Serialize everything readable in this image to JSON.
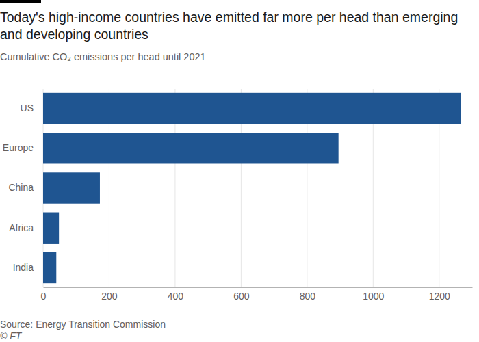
{
  "chart_data": {
    "type": "bar",
    "orientation": "horizontal",
    "title": "Today's high-income countries have emitted far more per head than emerging and developing countries",
    "subtitle": "Cumulative CO₂ emissions per head until 2021",
    "categories": [
      "US",
      "Europe",
      "China",
      "Africa",
      "India"
    ],
    "values": [
      1265,
      895,
      172,
      48,
      40
    ],
    "color": "#1f5591",
    "xlim": [
      0,
      1300
    ],
    "xticks": [
      0,
      200,
      400,
      600,
      800,
      1000,
      1200
    ],
    "grid": true,
    "source": "Source: Energy Transition Commission",
    "credit": "© FT"
  }
}
